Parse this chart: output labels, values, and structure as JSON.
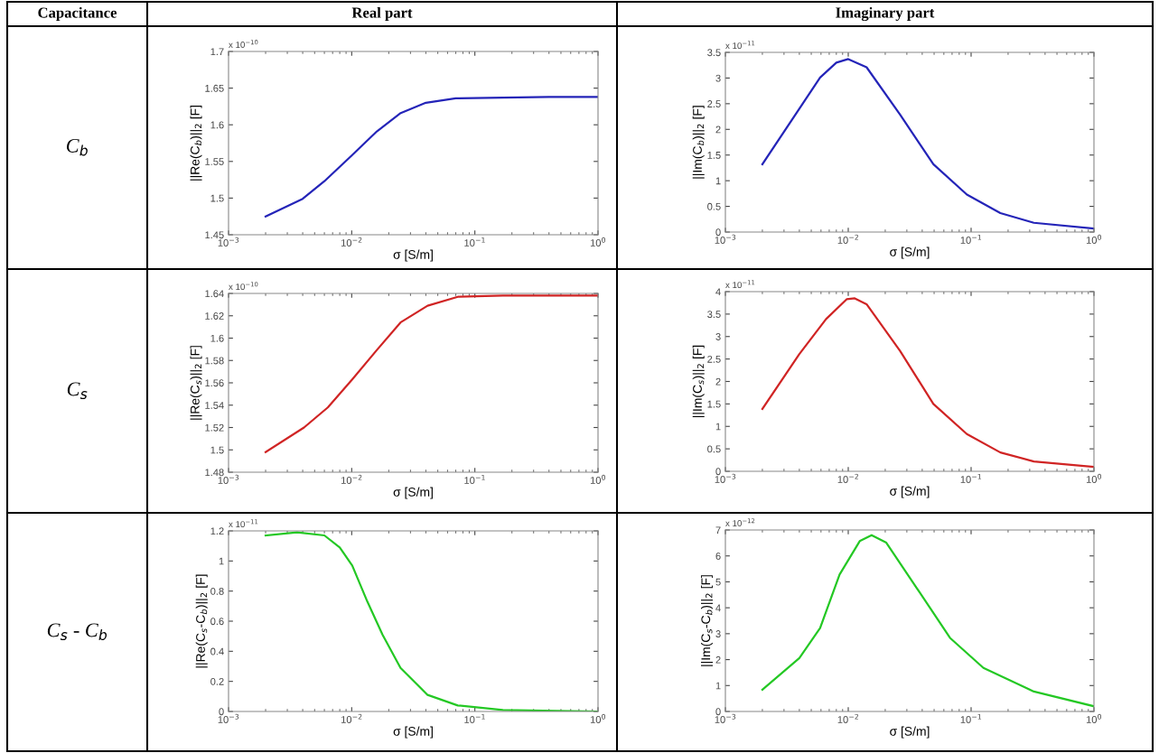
{
  "chart_data": [
    {
      "type": "line",
      "xlabel": "σ [S/m]",
      "ylabel": "||Re(C$_{b}$)||$_{2}$ [F]",
      "annotations": [
        "x 10$^{−10}$"
      ],
      "log": "x",
      "grid": false,
      "x": [
        0.002,
        0.004,
        0.006,
        0.01,
        0.016,
        0.025,
        0.04,
        0.07,
        0.17,
        0.4,
        1
      ],
      "series": [
        {
          "color": "#2424b8",
          "values": [
            1.475,
            1.499,
            1.523,
            1.558,
            1.591,
            1.616,
            1.63,
            1.636,
            1.637,
            1.638,
            1.638
          ]
        }
      ],
      "xlim": [
        0.001,
        1
      ],
      "xticks": [
        {
          "value": 0.001,
          "label": "10$^{−3}$"
        },
        {
          "value": 0.01,
          "label": "10$^{−2}$"
        },
        {
          "value": 0.1,
          "label": "10$^{−1}$"
        },
        {
          "value": 1,
          "label": "10$^{0}$"
        }
      ],
      "ylim": [
        1.45,
        1.7
      ],
      "yticks": [
        1.45,
        1.5,
        1.55,
        1.6,
        1.65,
        1.7
      ]
    },
    {
      "type": "line",
      "xlabel": "σ [S/m]",
      "ylabel": "||Im(C$_{b}$)||$_{2}$ [F]",
      "annotations": [
        "x 10$^{−11}$"
      ],
      "log": "x",
      "grid": false,
      "x": [
        0.002,
        0.0059,
        0.008,
        0.01,
        0.0141,
        0.0264,
        0.0493,
        0.0924,
        0.173,
        0.324,
        1
      ],
      "series": [
        {
          "color": "#2424b8",
          "values": [
            1.32,
            3.01,
            3.3,
            3.37,
            3.21,
            2.29,
            1.32,
            0.73,
            0.37,
            0.18,
            0.07
          ]
        }
      ],
      "xlim": [
        0.001,
        1
      ],
      "xticks": [
        {
          "value": 0.001,
          "label": "10$^{−3}$"
        },
        {
          "value": 0.01,
          "label": "10$^{−2}$"
        },
        {
          "value": 0.1,
          "label": "10$^{−1}$"
        },
        {
          "value": 1,
          "label": "10$^{0}$"
        }
      ],
      "ylim": [
        0,
        3.5
      ],
      "yticks": [
        0,
        0.5,
        1,
        1.5,
        2,
        2.5,
        3,
        3.5
      ]
    },
    {
      "type": "line",
      "xlabel": "σ [S/m]",
      "ylabel": "||Re(C$_{s}$)||$_{2}$ [F]",
      "annotations": [
        "x 10$^{−10}$"
      ],
      "log": "x",
      "grid": false,
      "x": [
        0.002,
        0.0041,
        0.0064,
        0.0101,
        0.0159,
        0.0249,
        0.0413,
        0.0727,
        0.169,
        1
      ],
      "series": [
        {
          "color": "#d02424",
          "values": [
            1.498,
            1.52,
            1.538,
            1.563,
            1.589,
            1.614,
            1.629,
            1.637,
            1.638,
            1.638
          ]
        }
      ],
      "xlim": [
        0.001,
        1
      ],
      "xticks": [
        {
          "value": 0.001,
          "label": "10$^{−3}$"
        },
        {
          "value": 0.01,
          "label": "10$^{−2}$"
        },
        {
          "value": 0.1,
          "label": "10$^{−1}$"
        },
        {
          "value": 1,
          "label": "10$^{0}$"
        }
      ],
      "ylim": [
        1.48,
        1.64
      ],
      "yticks": [
        1.48,
        1.5,
        1.52,
        1.54,
        1.56,
        1.58,
        1.6,
        1.62,
        1.64
      ]
    },
    {
      "type": "line",
      "xlabel": "σ [S/m]",
      "ylabel": "||Im(C$_{s}$)||$_{2}$ [F]",
      "annotations": [
        "x 10$^{−11}$"
      ],
      "log": "x",
      "grid": false,
      "x": [
        0.002,
        0.004,
        0.0066,
        0.0097,
        0.0113,
        0.0141,
        0.0264,
        0.0493,
        0.0924,
        0.173,
        0.324,
        1
      ],
      "series": [
        {
          "color": "#d02424",
          "values": [
            1.39,
            2.61,
            3.39,
            3.83,
            3.85,
            3.72,
            2.68,
            1.5,
            0.83,
            0.42,
            0.22,
            0.1
          ]
        }
      ],
      "xlim": [
        0.001,
        1
      ],
      "xticks": [
        {
          "value": 0.001,
          "label": "10$^{−3}$"
        },
        {
          "value": 0.01,
          "label": "10$^{−2}$"
        },
        {
          "value": 0.1,
          "label": "10$^{−1}$"
        },
        {
          "value": 1,
          "label": "10$^{0}$"
        }
      ],
      "ylim": [
        0,
        4
      ],
      "yticks": [
        0,
        0.5,
        1,
        1.5,
        2,
        2.5,
        3,
        3.5,
        4
      ]
    },
    {
      "type": "line",
      "xlabel": "σ [S/m]",
      "ylabel": "||Re(C$_{s}$-C$_{b}$)||$_{2}$ [F]",
      "annotations": [
        "x 10$^{−11}$"
      ],
      "log": "x",
      "grid": false,
      "x": [
        0.002,
        0.0036,
        0.006,
        0.008,
        0.0101,
        0.0134,
        0.0178,
        0.0249,
        0.0413,
        0.0727,
        0.169,
        1
      ],
      "series": [
        {
          "color": "#24c824",
          "values": [
            1.17,
            1.19,
            1.17,
            1.09,
            0.97,
            0.73,
            0.51,
            0.29,
            0.11,
            0.04,
            0.01,
            0
          ]
        }
      ],
      "xlim": [
        0.001,
        1
      ],
      "xticks": [
        {
          "value": 0.001,
          "label": "10$^{−3}$"
        },
        {
          "value": 0.01,
          "label": "10$^{−2}$"
        },
        {
          "value": 0.1,
          "label": "10$^{−1}$"
        },
        {
          "value": 1,
          "label": "10$^{0}$"
        }
      ],
      "ylim": [
        0,
        1.2
      ],
      "yticks": [
        0,
        0.2,
        0.4,
        0.6,
        0.8,
        1,
        1.2
      ]
    },
    {
      "type": "line",
      "xlabel": "σ [S/m]",
      "ylabel": "||Im(C$_{s}$-C$_{b}$)||$_{2}$ [F]",
      "annotations": [
        "x 10$^{−12}$"
      ],
      "log": "x",
      "grid": false,
      "x": [
        0.002,
        0.004,
        0.0059,
        0.0085,
        0.0124,
        0.0155,
        0.0204,
        0.036,
        0.0673,
        0.126,
        0.324,
        1
      ],
      "series": [
        {
          "color": "#24c824",
          "values": [
            0.84,
            2.06,
            3.22,
            5.28,
            6.57,
            6.8,
            6.51,
            4.77,
            2.84,
            1.68,
            0.77,
            0.2
          ]
        }
      ],
      "xlim": [
        0.001,
        1
      ],
      "xticks": [
        {
          "value": 0.001,
          "label": "10$^{−3}$"
        },
        {
          "value": 0.01,
          "label": "10$^{−2}$"
        },
        {
          "value": 0.1,
          "label": "10$^{−1}$"
        },
        {
          "value": 1,
          "label": "10$^{0}$"
        }
      ],
      "ylim": [
        0,
        7
      ],
      "yticks": [
        0,
        1,
        2,
        3,
        4,
        5,
        6,
        7
      ]
    },
    {
      "type": "other",
      "annotations": [
        "Capacitance",
        "Real part",
        "Imaginary part",
        "C$_{b}$",
        "C$_{s}$",
        "C$_{s}$ - C$_{b}$"
      ]
    }
  ]
}
